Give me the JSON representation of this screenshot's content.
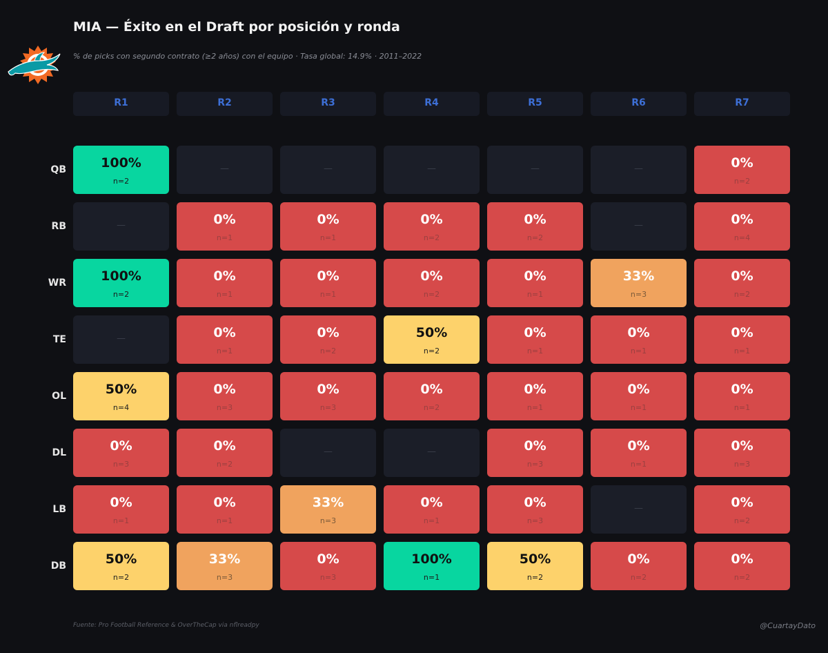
{
  "title": "MIA — Éxito en el Draft por posición y ronda",
  "subtitle": "% de picks con segundo contrato (≥2 años) con el equipo  ·  Tasa global: 14.9%  ·  2011–2022",
  "footer": {
    "source": "Fuente: Pro Football Reference & OverTheCap via nflreadpy",
    "handle": "@CuartayDato"
  },
  "logo_icon": "miami-dolphins-logo-icon",
  "colors": {
    "background": "#0f1014",
    "empty": "#1b1e28",
    "zero": "#d64a4a",
    "low": "#f0a35e",
    "mid": "#fdd26b",
    "high": "#08d6a0",
    "header_text": "#3d6fd6"
  },
  "empty_symbol": "—",
  "chart_data": {
    "type": "heatmap",
    "title": "MIA — Éxito en el Draft por posición y ronda",
    "columns": [
      "R1",
      "R2",
      "R3",
      "R4",
      "R5",
      "R6",
      "R7"
    ],
    "rows": [
      "QB",
      "RB",
      "WR",
      "TE",
      "OL",
      "DL",
      "LB",
      "DB"
    ],
    "values": [
      [
        100,
        null,
        null,
        null,
        null,
        null,
        0
      ],
      [
        null,
        0,
        0,
        0,
        0,
        null,
        0
      ],
      [
        100,
        0,
        0,
        0,
        0,
        33,
        0
      ],
      [
        null,
        0,
        0,
        50,
        0,
        0,
        0
      ],
      [
        50,
        0,
        0,
        0,
        0,
        0,
        0
      ],
      [
        0,
        0,
        null,
        null,
        0,
        0,
        0
      ],
      [
        0,
        0,
        33,
        0,
        0,
        null,
        0
      ],
      [
        50,
        33,
        0,
        100,
        50,
        0,
        0
      ]
    ],
    "counts": [
      [
        2,
        null,
        null,
        null,
        null,
        null,
        2
      ],
      [
        null,
        1,
        1,
        2,
        2,
        null,
        4
      ],
      [
        2,
        1,
        1,
        2,
        1,
        3,
        2
      ],
      [
        null,
        1,
        2,
        2,
        1,
        1,
        1
      ],
      [
        4,
        3,
        3,
        2,
        1,
        1,
        1
      ],
      [
        3,
        2,
        null,
        null,
        3,
        1,
        3
      ],
      [
        1,
        1,
        3,
        1,
        3,
        null,
        2
      ],
      [
        2,
        3,
        3,
        1,
        2,
        2,
        2
      ]
    ],
    "unit": "%"
  }
}
